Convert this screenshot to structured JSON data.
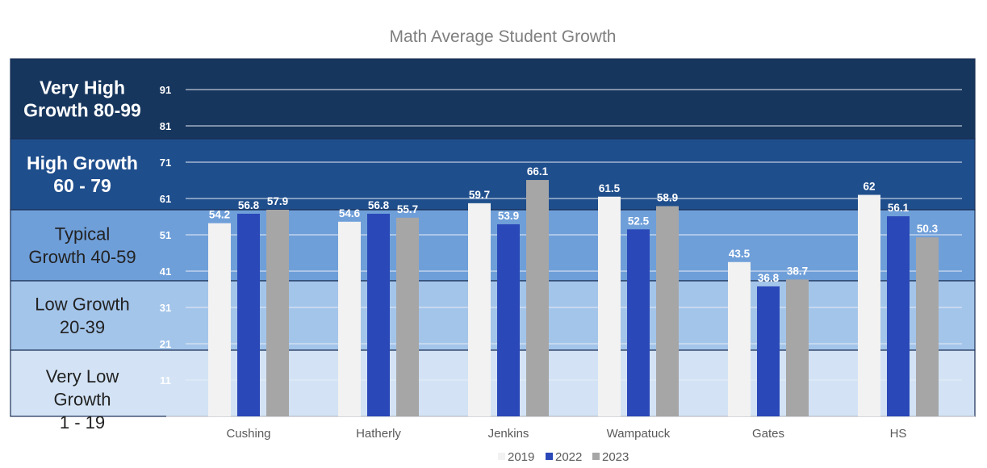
{
  "chart_data": {
    "type": "bar",
    "title": "Math Average Student Growth",
    "categories": [
      "Cushing",
      "Hatherly",
      "Jenkins",
      "Wampatuck",
      "Gates",
      "HS"
    ],
    "series": [
      {
        "name": "2019",
        "color": "#f2f2f2",
        "values": [
          54.2,
          54.6,
          59.7,
          61.5,
          43.5,
          62
        ]
      },
      {
        "name": "2022",
        "color": "#2a48b8",
        "values": [
          56.8,
          56.8,
          53.9,
          52.5,
          36.8,
          56.1
        ]
      },
      {
        "name": "2023",
        "color": "#a6a6a6",
        "values": [
          57.9,
          55.7,
          66.1,
          58.9,
          38.7,
          50.3
        ]
      }
    ],
    "yticks": [
      11,
      21,
      31,
      41,
      51,
      61,
      71,
      81,
      91
    ],
    "ylim": [
      1,
      99
    ],
    "grid": true,
    "legend_position": "bottom",
    "bands": [
      {
        "line1": "Very High",
        "line2": "Growth 80-99",
        "line3": "",
        "min": 80,
        "max": 99,
        "color": "#17365d",
        "text_color": "#ffffff",
        "bold": true
      },
      {
        "line1": "High Growth",
        "line2": "60 - 79",
        "line3": "",
        "min": 60,
        "max": 80,
        "color": "#1f4e8c",
        "text_color": "#ffffff",
        "bold": true
      },
      {
        "line1": "Typical",
        "line2": "Growth 40-59",
        "line3": "",
        "min": 40,
        "max": 60,
        "color": "#6f9fd9",
        "text_color": "#222222",
        "bold": false
      },
      {
        "line1": "Low Growth",
        "line2": "20-39",
        "line3": "",
        "min": 20,
        "max": 40,
        "color": "#a4c5ea",
        "text_color": "#222222",
        "bold": false
      },
      {
        "line1": "Very Low",
        "line2": "Growth",
        "line3": "1 - 19",
        "min": 1,
        "max": 20,
        "color": "#d3e3f5",
        "text_color": "#222222",
        "bold": false
      }
    ]
  }
}
